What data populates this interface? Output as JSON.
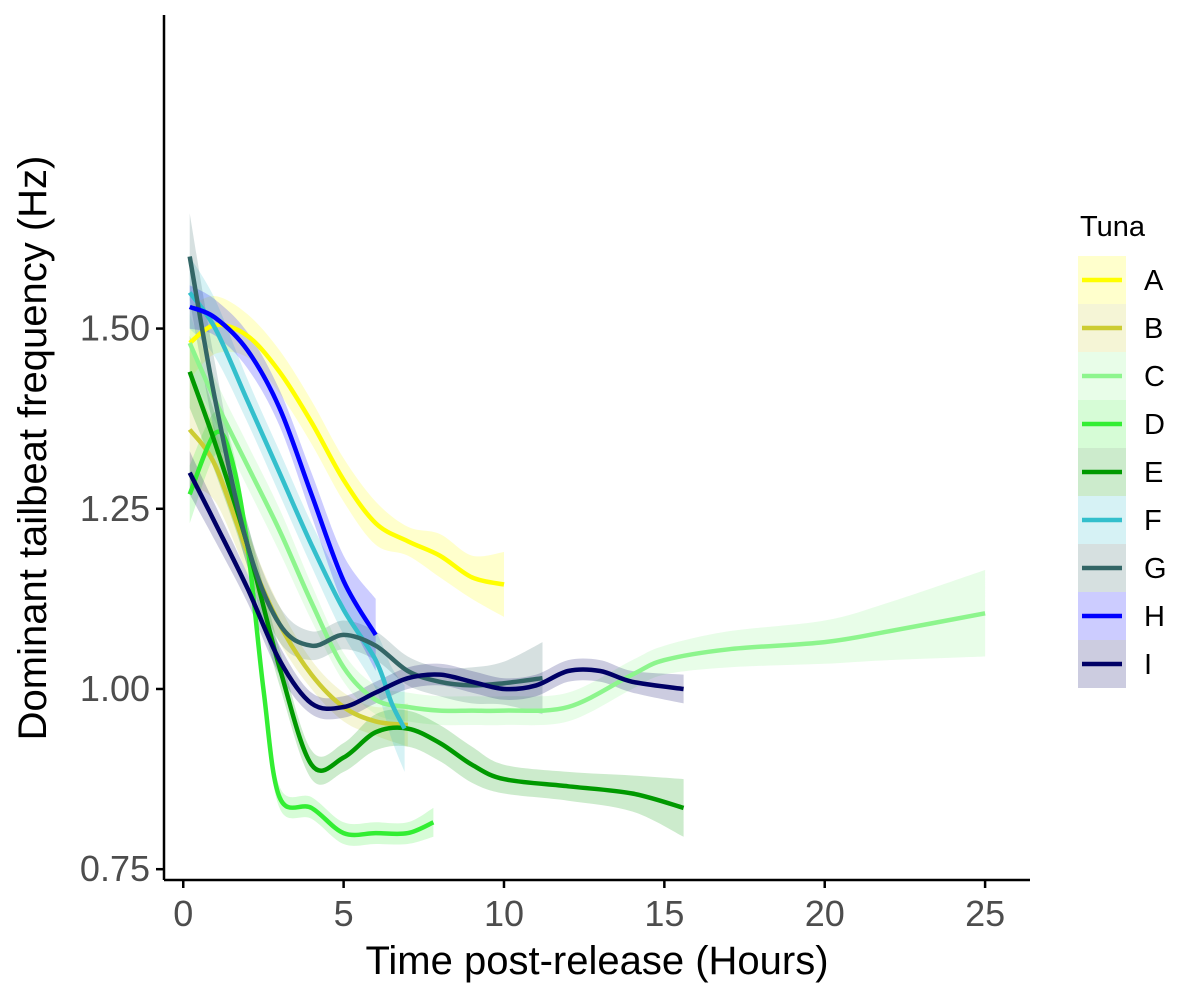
{
  "chart_data": {
    "type": "line",
    "title": "",
    "xlabel": "Time post-release (Hours)",
    "ylabel": "Dominant tailbeat frequency (Hz)",
    "xlim": [
      -0.6,
      26.4
    ],
    "ylim": [
      0.735,
      1.935
    ],
    "x_ticks": [
      0,
      5,
      10,
      15,
      20,
      25
    ],
    "x_tick_labels": [
      "0",
      "5",
      "10",
      "15",
      "20",
      "25"
    ],
    "y_ticks": [
      0.75,
      1.0,
      1.25,
      1.5
    ],
    "y_tick_labels": [
      "0.75",
      "1.00",
      "1.25",
      "1.50"
    ],
    "grid": false,
    "legend_title": "Tuna",
    "legend_position": "right",
    "series": [
      {
        "name": "A",
        "color": "#ffff00",
        "points": [
          [
            0.2,
            1.48
          ],
          [
            1,
            1.505
          ],
          [
            2,
            1.49
          ],
          [
            3,
            1.44
          ],
          [
            4,
            1.37
          ],
          [
            5,
            1.29
          ],
          [
            6,
            1.23
          ],
          [
            7,
            1.205
          ],
          [
            8,
            1.185
          ],
          [
            9,
            1.155
          ],
          [
            10,
            1.145
          ]
        ],
        "band_half_width": [
          0.05,
          0.04,
          0.03,
          0.03,
          0.03,
          0.03,
          0.03,
          0.02,
          0.03,
          0.03,
          0.045
        ]
      },
      {
        "name": "B",
        "color": "#cccc33",
        "points": [
          [
            0.2,
            1.36
          ],
          [
            1,
            1.31
          ],
          [
            2,
            1.19
          ],
          [
            3,
            1.09
          ],
          [
            4,
            1.02
          ],
          [
            5,
            0.975
          ],
          [
            6,
            0.955
          ],
          [
            7,
            0.95
          ]
        ],
        "band_half_width": [
          0.08,
          0.05,
          0.03,
          0.025,
          0.02,
          0.02,
          0.02,
          0.03
        ]
      },
      {
        "name": "C",
        "color": "#8df58d",
        "points": [
          [
            0.2,
            1.48
          ],
          [
            1,
            1.4
          ],
          [
            2,
            1.31
          ],
          [
            3,
            1.22
          ],
          [
            4,
            1.12
          ],
          [
            5,
            1.03
          ],
          [
            6,
            0.985
          ],
          [
            7,
            0.975
          ],
          [
            8,
            0.97
          ],
          [
            9,
            0.97
          ],
          [
            10,
            0.97
          ],
          [
            12,
            0.975
          ],
          [
            14,
            1.02
          ],
          [
            15,
            1.04
          ],
          [
            17,
            1.055
          ],
          [
            20,
            1.065
          ],
          [
            22,
            1.08
          ],
          [
            25,
            1.105
          ]
        ],
        "band_half_width": [
          0.04,
          0.03,
          0.03,
          0.03,
          0.025,
          0.02,
          0.02,
          0.02,
          0.02,
          0.02,
          0.02,
          0.02,
          0.02,
          0.02,
          0.025,
          0.03,
          0.04,
          0.06
        ]
      },
      {
        "name": "D",
        "color": "#33ee33",
        "points": [
          [
            0.2,
            1.27
          ],
          [
            1,
            1.355
          ],
          [
            1.5,
            1.32
          ],
          [
            2,
            1.2
          ],
          [
            2.5,
            1.0
          ],
          [
            3,
            0.85
          ],
          [
            4,
            0.835
          ],
          [
            5,
            0.8
          ],
          [
            6,
            0.8
          ],
          [
            7,
            0.8
          ],
          [
            7.8,
            0.815
          ]
        ],
        "band_half_width": [
          0.04,
          0.03,
          0.02,
          0.02,
          0.02,
          0.015,
          0.015,
          0.015,
          0.015,
          0.015,
          0.02
        ]
      },
      {
        "name": "E",
        "color": "#009900",
        "points": [
          [
            0.2,
            1.44
          ],
          [
            1,
            1.34
          ],
          [
            2,
            1.2
          ],
          [
            3,
            1.03
          ],
          [
            4,
            0.895
          ],
          [
            5,
            0.905
          ],
          [
            6,
            0.94
          ],
          [
            7,
            0.945
          ],
          [
            8,
            0.925
          ],
          [
            9,
            0.895
          ],
          [
            10,
            0.875
          ],
          [
            12,
            0.865
          ],
          [
            14,
            0.855
          ],
          [
            15.6,
            0.835
          ]
        ],
        "band_half_width": [
          0.05,
          0.04,
          0.03,
          0.025,
          0.02,
          0.02,
          0.025,
          0.025,
          0.025,
          0.025,
          0.02,
          0.02,
          0.025,
          0.04
        ]
      },
      {
        "name": "F",
        "color": "#33bfcc",
        "points": [
          [
            0.2,
            1.55
          ],
          [
            1,
            1.5
          ],
          [
            2,
            1.4
          ],
          [
            3,
            1.3
          ],
          [
            4,
            1.2
          ],
          [
            5,
            1.11
          ],
          [
            6,
            1.04
          ],
          [
            6.5,
            0.98
          ],
          [
            6.9,
            0.945
          ]
        ],
        "band_half_width": [
          0.05,
          0.04,
          0.03,
          0.03,
          0.03,
          0.035,
          0.04,
          0.05,
          0.06
        ]
      },
      {
        "name": "G",
        "color": "#336666",
        "points": [
          [
            0.2,
            1.6
          ],
          [
            1,
            1.4
          ],
          [
            2,
            1.2
          ],
          [
            3,
            1.09
          ],
          [
            4,
            1.06
          ],
          [
            5,
            1.075
          ],
          [
            6,
            1.06
          ],
          [
            7,
            1.025
          ],
          [
            8,
            1.01
          ],
          [
            9,
            1.005
          ],
          [
            10,
            1.008
          ],
          [
            11.2,
            1.015
          ]
        ],
        "band_half_width": [
          0.06,
          0.05,
          0.03,
          0.025,
          0.02,
          0.02,
          0.02,
          0.02,
          0.02,
          0.025,
          0.03,
          0.05
        ]
      },
      {
        "name": "H",
        "color": "#0000ff",
        "points": [
          [
            0.2,
            1.53
          ],
          [
            1,
            1.515
          ],
          [
            2,
            1.47
          ],
          [
            3,
            1.39
          ],
          [
            4,
            1.27
          ],
          [
            5,
            1.15
          ],
          [
            6,
            1.075
          ]
        ],
        "band_half_width": [
          0.03,
          0.025,
          0.025,
          0.025,
          0.03,
          0.035,
          0.05
        ]
      },
      {
        "name": "I",
        "color": "#000066",
        "points": [
          [
            0.2,
            1.3
          ],
          [
            1,
            1.23
          ],
          [
            2,
            1.14
          ],
          [
            3,
            1.04
          ],
          [
            4,
            0.98
          ],
          [
            5,
            0.975
          ],
          [
            6,
            0.995
          ],
          [
            7,
            1.015
          ],
          [
            8,
            1.02
          ],
          [
            9,
            1.01
          ],
          [
            10,
            1.0
          ],
          [
            11,
            1.005
          ],
          [
            12,
            1.025
          ],
          [
            13,
            1.025
          ],
          [
            14,
            1.01
          ],
          [
            15.6,
            1.0
          ]
        ],
        "band_half_width": [
          0.03,
          0.025,
          0.02,
          0.02,
          0.015,
          0.015,
          0.015,
          0.015,
          0.015,
          0.015,
          0.015,
          0.015,
          0.015,
          0.015,
          0.015,
          0.02
        ]
      }
    ]
  }
}
